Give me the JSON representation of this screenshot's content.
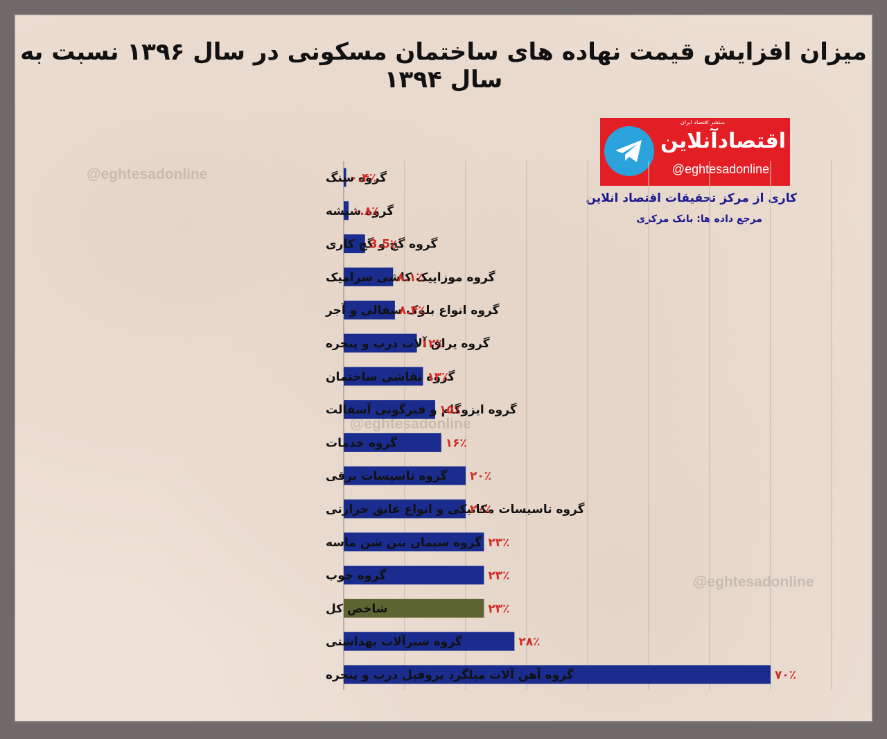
{
  "title": "میزان افزایش قیمت نهاده های ساختمان مسکونی در سال ۱۳۹۶ نسبت به سال ۱۳۹۴",
  "watermark": "@eghtesadonline",
  "logo": {
    "name": "اقتصادآنلاین",
    "tagline": "منتشر اقتصاد ایران",
    "handle": "@eghtesadonline",
    "icon": "telegram-icon"
  },
  "credit": "کاری از مرکز تحقیقات اقتصاد انلاین",
  "source": "مرجع داده ها: بانک مرکزی",
  "colors": {
    "bar": "#1a2d8f",
    "highlight_bar": "#5d6632",
    "value_text": "#d42a25",
    "logo_red": "#e31e24",
    "telegram_blue": "#2aa3dd"
  },
  "chart_data": {
    "type": "bar",
    "orientation": "horizontal",
    "title": "میزان افزایش قیمت نهاده های ساختمان مسکونی در سال ۱۳۹۶ نسبت به سال ۱۳۹۴",
    "xlim": [
      0,
      80
    ],
    "grid": true,
    "legend": "none",
    "highlight_category": "شاخص کل",
    "categories": [
      "گروه سنگ",
      "گروه شیشه",
      "گروه گچ و گچ کاری",
      "گروه موزاییک کاشی سرامیک",
      "گروه انواع بلوک سفالی و آجر",
      "گروه یراق آلات درب و پنجره",
      "گروه نقاشی ساختمان",
      "گروه ایزوگام و قیرگونی آسفالت",
      "گروه خدمات",
      "گروه تاسیسات برقی",
      "گروه تاسیسات مکانیکی و انواع عایق حرارتی",
      "گروه سیمان بتن شن ماسه",
      "گروه چوب",
      "شاخص کل",
      "گروه شیرآلات بهداشتی",
      "گروه آهن آلات میلگرد پروفیل درب و پنجره"
    ],
    "values": [
      0.4,
      0.8,
      3.5,
      8.1,
      8.4,
      12,
      13,
      15,
      16,
      20,
      20,
      23,
      23,
      23,
      28,
      70
    ],
    "value_labels": [
      "۰.۴٪",
      "۰.۸٪",
      "3.5٪",
      "۸.۱٪",
      "۸.۴٪",
      "۱۲٪",
      "۱۳٪",
      "۱۵٪",
      "۱۶٪",
      "۲۰٪",
      "۲۰٪",
      "۲۳٪",
      "۲۳٪",
      "۲۳٪",
      "۲۸٪",
      "۷۰٪"
    ]
  }
}
